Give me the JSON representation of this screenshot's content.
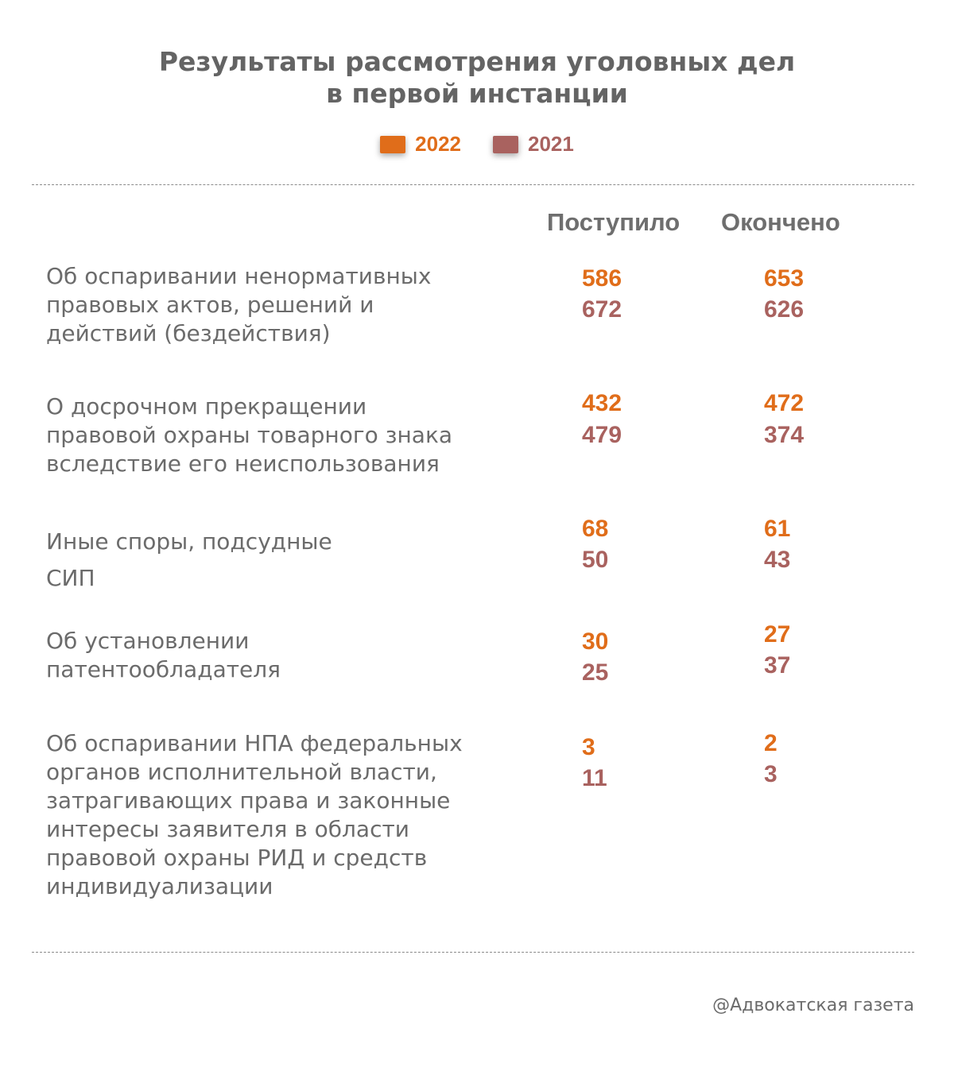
{
  "title_line1": "Результаты рассмотрения уголовных дел",
  "title_line2": "в первой инстанции",
  "legend": [
    {
      "label": "2022",
      "color": "#e06d1a"
    },
    {
      "label": "2021",
      "color": "#a9625f"
    }
  ],
  "columns": {
    "received": "Поступило",
    "completed": "Окончено"
  },
  "source": "@Адвокатская газета",
  "chart_data": {
    "type": "table",
    "title": "Результаты рассмотрения уголовных дел в первой инстанции",
    "columns": [
      "Поступило",
      "Окончено"
    ],
    "series_names": [
      "2022",
      "2021"
    ],
    "rows": [
      {
        "label_lines": [
          "Об оспаривании ненормативных",
          "правовых актов, решений и",
          "действий (бездействия)"
        ],
        "received": {
          "y2022": "586",
          "y2021": "672"
        },
        "completed": {
          "y2022": "653",
          "y2021": "626"
        }
      },
      {
        "label_lines": [
          "О досрочном прекращении",
          "правовой охраны товарного знака",
          "вследствие его неиспользования"
        ],
        "received": {
          "y2022": "432",
          "y2021": "479"
        },
        "completed": {
          "y2022": "472",
          "y2021": "374"
        }
      },
      {
        "label_lines": [
          "Иные споры, подсудные",
          "СИП"
        ],
        "received": {
          "y2022": "68",
          "y2021": "50"
        },
        "completed": {
          "y2022": "61",
          "y2021": "43"
        }
      },
      {
        "label_lines": [
          "Об установлении",
          "патентообладателя"
        ],
        "received": {
          "y2022": "30",
          "y2021": "25"
        },
        "completed": {
          "y2022": "27",
          "y2021": "37"
        }
      },
      {
        "label_lines": [
          "Об оспаривании НПА федеральных",
          "органов исполнительной власти,",
          "затрагивающих права и законные",
          "интересы заявителя в области",
          "правовой охраны РИД и средств",
          "индивидуализации"
        ],
        "received": {
          "y2022": "3",
          "y2021": "11"
        },
        "completed": {
          "y2022": "2",
          "y2021": "3"
        }
      }
    ]
  }
}
